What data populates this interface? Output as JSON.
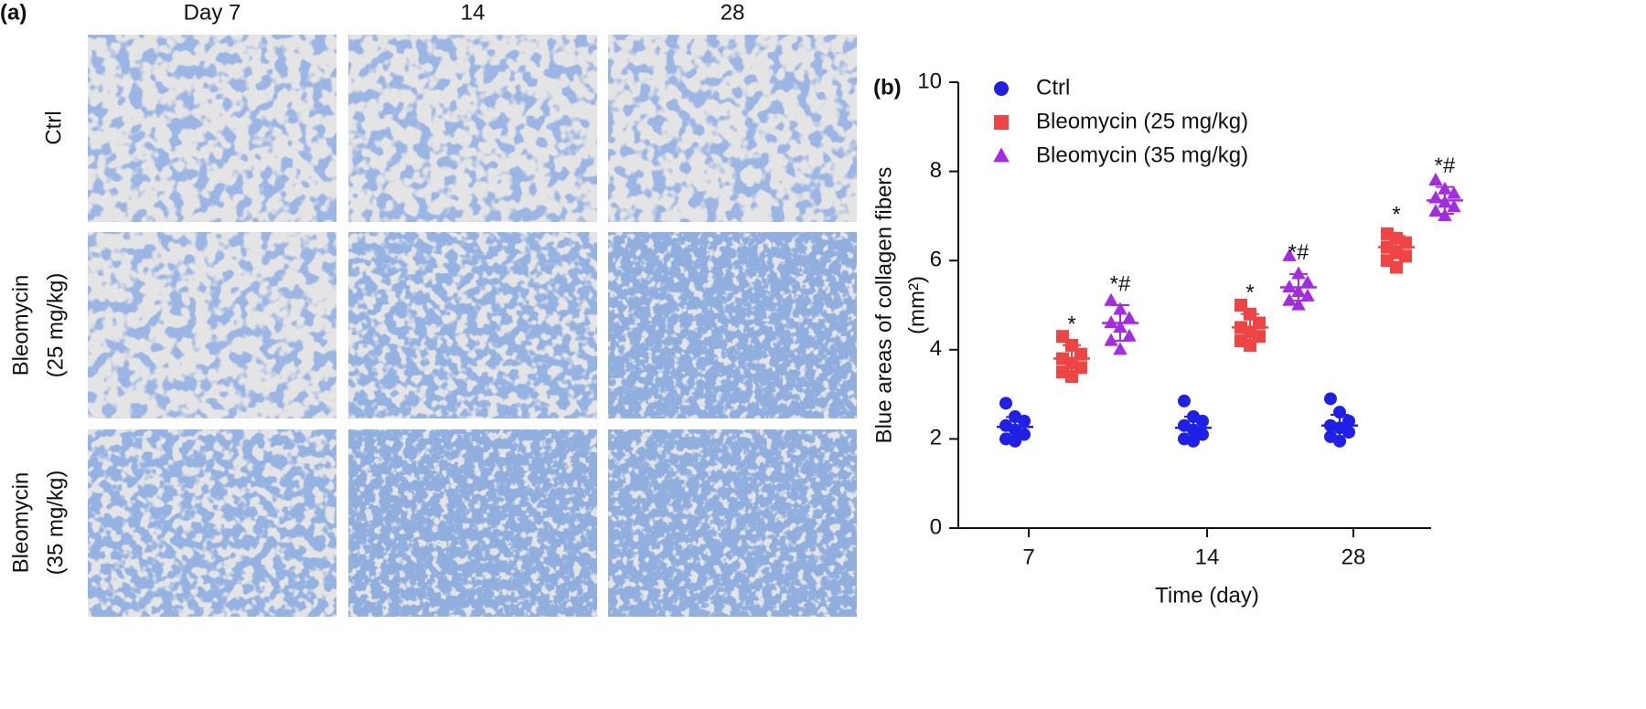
{
  "panel_a": {
    "label": "(a)",
    "columns": [
      "Day 7",
      "14",
      "28"
    ],
    "rows": [
      [
        "Ctrl"
      ],
      [
        "Bleomycin",
        "(25 mg/kg)"
      ],
      [
        "Bleomycin",
        "(35 mg/kg)"
      ]
    ]
  },
  "chart_data": {
    "type": "scatter",
    "panel_label": "(b)",
    "xlabel": "Time (day)",
    "ylabel": "Blue areas of collagen fibers",
    "ylabel_unit": "(mm²)",
    "categories": [
      "7",
      "14",
      "28"
    ],
    "ylim": [
      0,
      10
    ],
    "yticks": [
      0,
      2,
      4,
      6,
      8,
      10
    ],
    "legend": "top-left",
    "series": [
      {
        "name": "Ctrl",
        "color": "#1f1fe6",
        "marker": "circle",
        "means": [
          2.27,
          2.25,
          2.3
        ],
        "sd": [
          0.22,
          0.25,
          0.24
        ],
        "points": [
          [
            2.8,
            2.5,
            2.4,
            2.3,
            2.2,
            2.1,
            2.0,
            1.95
          ],
          [
            2.85,
            2.5,
            2.4,
            2.3,
            2.2,
            2.1,
            2.0,
            1.95
          ],
          [
            2.9,
            2.6,
            2.4,
            2.3,
            2.25,
            2.15,
            2.05,
            1.95
          ]
        ]
      },
      {
        "name": "Bleomycin (25 mg/kg)",
        "color": "#ef4444",
        "marker": "square",
        "means": [
          3.8,
          4.5,
          6.3
        ],
        "sd": [
          0.3,
          0.3,
          0.25
        ],
        "points": [
          [
            4.3,
            4.1,
            3.9,
            3.8,
            3.7,
            3.6,
            3.5,
            3.4
          ],
          [
            5.0,
            4.8,
            4.6,
            4.5,
            4.4,
            4.3,
            4.2,
            4.1
          ],
          [
            6.6,
            6.5,
            6.4,
            6.3,
            6.2,
            6.1,
            6.0,
            5.85
          ]
        ],
        "annotations": [
          "*",
          "*",
          "*"
        ]
      },
      {
        "name": "Bleomycin (35 mg/kg)",
        "color": "#a32be0",
        "marker": "triangle",
        "means": [
          4.6,
          5.4,
          7.35
        ],
        "sd": [
          0.4,
          0.3,
          0.3
        ],
        "points": [
          [
            5.1,
            4.9,
            4.7,
            4.6,
            4.5,
            4.3,
            4.2,
            4.0
          ],
          [
            6.1,
            5.7,
            5.5,
            5.4,
            5.3,
            5.2,
            5.1,
            5.0
          ],
          [
            7.8,
            7.6,
            7.5,
            7.4,
            7.3,
            7.2,
            7.1,
            7.0
          ]
        ],
        "annotations": [
          "*#",
          "*#",
          "*#"
        ]
      }
    ]
  }
}
